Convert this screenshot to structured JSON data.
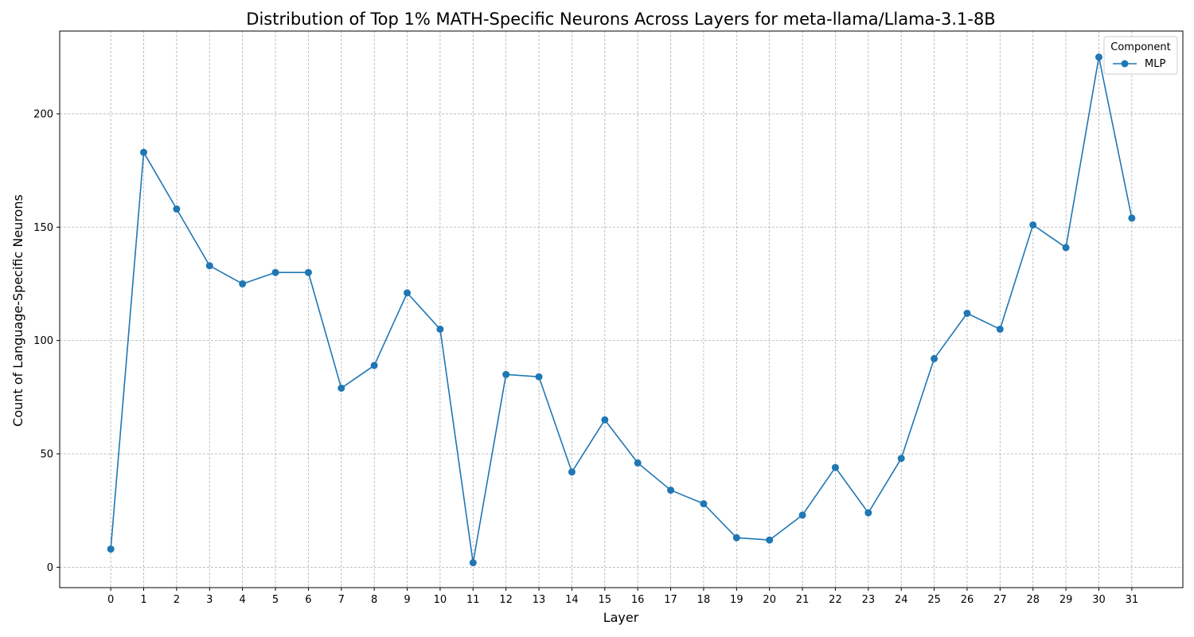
{
  "chart_data": {
    "type": "line",
    "title": "Distribution of Top 1% MATH-Specific Neurons Across Layers for meta-llama/Llama-3.1-8B",
    "xlabel": "Layer",
    "ylabel": "Count of Language-Specific Neurons",
    "x": [
      0,
      1,
      2,
      3,
      4,
      5,
      6,
      7,
      8,
      9,
      10,
      11,
      12,
      13,
      14,
      15,
      16,
      17,
      18,
      19,
      20,
      21,
      22,
      23,
      24,
      25,
      26,
      27,
      28,
      29,
      30,
      31
    ],
    "x_tick_labels": [
      "0",
      "1",
      "2",
      "3",
      "4",
      "5",
      "6",
      "7",
      "8",
      "9",
      "10",
      "11",
      "12",
      "13",
      "14",
      "15",
      "16",
      "17",
      "18",
      "19",
      "20",
      "21",
      "22",
      "23",
      "24",
      "25",
      "26",
      "27",
      "28",
      "29",
      "30",
      "31"
    ],
    "xlim": [
      -1.55,
      32.55
    ],
    "ylim": [
      -9,
      236.5
    ],
    "y_ticks": [
      0,
      50,
      100,
      150,
      200
    ],
    "y_tick_labels": [
      "0",
      "50",
      "100",
      "150",
      "200"
    ],
    "grid": true,
    "legend": {
      "title": "Component",
      "placement": "top-right"
    },
    "series": [
      {
        "name": "MLP",
        "color": "#1f77b4",
        "marker": "circle",
        "values": [
          8,
          183,
          158,
          133,
          125,
          130,
          130,
          79,
          89,
          121,
          105,
          2,
          85,
          84,
          42,
          65,
          46,
          34,
          28,
          13,
          12,
          23,
          44,
          24,
          48,
          92,
          112,
          105,
          151,
          141,
          225,
          154
        ]
      }
    ]
  }
}
